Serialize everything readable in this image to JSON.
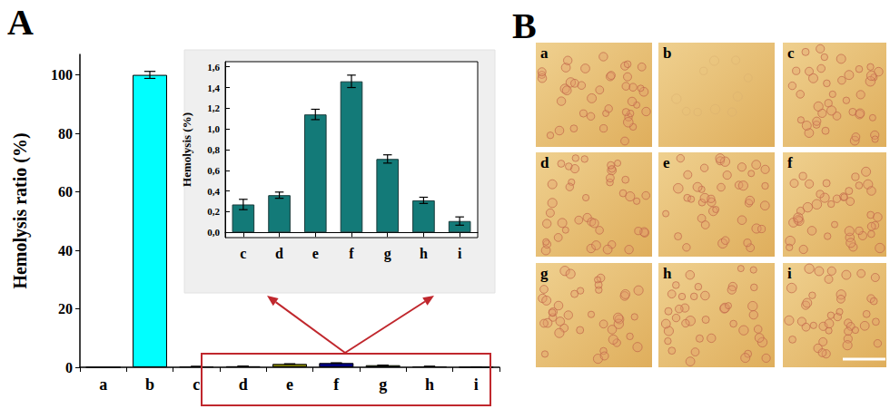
{
  "chart_data": [
    {
      "type": "bar",
      "panel_label": "A",
      "categories": [
        "a",
        "b",
        "c",
        "d",
        "e",
        "f",
        "g",
        "h",
        "i"
      ],
      "values": [
        0,
        100,
        0.27,
        0.36,
        1.14,
        1.46,
        0.71,
        0.31,
        0.11
      ],
      "errors": [
        0,
        1.2,
        0.05,
        0.03,
        0.05,
        0.06,
        0.04,
        0.03,
        0.04
      ],
      "colors": [
        "#000000",
        "#00ffff",
        "#1a3333",
        "#333399",
        "#808000",
        "#000080",
        "#336600",
        "#663399",
        "#003333"
      ],
      "ylabel": "Hemolysis ratio (%)",
      "ylim": [
        0,
        107
      ],
      "yticks": [
        0,
        20,
        40,
        60,
        80,
        100
      ],
      "grid": false
    },
    {
      "type": "bar",
      "categories": [
        "c",
        "d",
        "e",
        "f",
        "g",
        "h",
        "i"
      ],
      "values": [
        0.27,
        0.36,
        1.14,
        1.46,
        0.71,
        0.31,
        0.11
      ],
      "errors": [
        0.05,
        0.03,
        0.05,
        0.06,
        0.04,
        0.03,
        0.04
      ],
      "color": "#137a78",
      "ylabel": "Hemolysis (%)",
      "ylim": [
        -0.05,
        1.65
      ],
      "yticks": [
        {
          "value": 0,
          "label": "0,0"
        },
        {
          "value": 0.2,
          "label": "0,2"
        },
        {
          "value": 0.4,
          "label": "0,4"
        },
        {
          "value": 0.6,
          "label": "0,6"
        },
        {
          "value": 0.8,
          "label": "0,8"
        },
        {
          "value": 1.0,
          "label": "1,0"
        },
        {
          "value": 1.2,
          "label": "1,2"
        },
        {
          "value": 1.4,
          "label": "1,4"
        },
        {
          "value": 1.6,
          "label": "1,6"
        }
      ],
      "grid": false
    }
  ],
  "images": {
    "panel_label": "B",
    "labels": [
      "a",
      "b",
      "c",
      "d",
      "e",
      "f",
      "g",
      "h",
      "i"
    ]
  }
}
